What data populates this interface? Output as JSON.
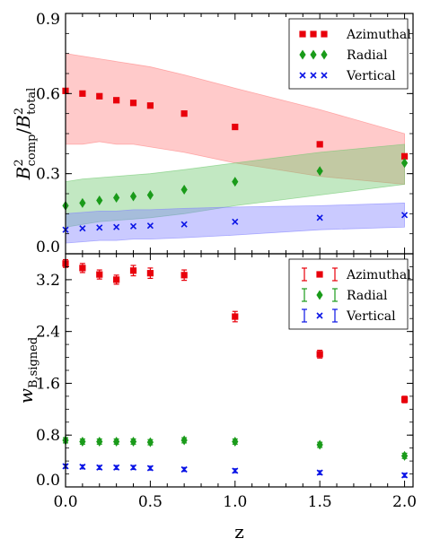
{
  "chart_data": [
    {
      "type": "scatter",
      "panel": "top",
      "ylabel": "B²comp/B²total",
      "ylabel_parts": {
        "num_base": "B",
        "num_sub": "comp",
        "den_base": "B",
        "den_sub": "total",
        "sup": "2",
        "sep": "/"
      },
      "xlim": [
        0.0,
        2.05
      ],
      "ylim": [
        0.0,
        0.9
      ],
      "yticks": [
        0.0,
        0.3,
        0.6,
        0.9
      ],
      "ytick_labels": [
        "0.0",
        "0.3",
        "0.6",
        "0.9"
      ],
      "grid": false,
      "legend_position": "top-right",
      "x": [
        0.0,
        0.1,
        0.2,
        0.3,
        0.4,
        0.5,
        0.7,
        1.0,
        1.5,
        2.0
      ],
      "series": [
        {
          "name": "Azimuthal",
          "marker": "square",
          "color": "#e8000b",
          "values": [
            0.61,
            0.6,
            0.59,
            0.575,
            0.565,
            0.555,
            0.525,
            0.475,
            0.41,
            0.365
          ],
          "band_upper": [
            0.75,
            0.74,
            0.73,
            0.72,
            0.71,
            0.7,
            0.67,
            0.62,
            0.54,
            0.45
          ],
          "band_lower": [
            0.41,
            0.41,
            0.42,
            0.41,
            0.41,
            0.4,
            0.38,
            0.34,
            0.29,
            0.26
          ],
          "band_color": "#ff8080"
        },
        {
          "name": "Radial",
          "marker": "diamond",
          "color": "#1a9b1a",
          "values": [
            0.18,
            0.19,
            0.2,
            0.21,
            0.215,
            0.22,
            0.24,
            0.27,
            0.31,
            0.34
          ],
          "band_upper": [
            0.27,
            0.28,
            0.285,
            0.29,
            0.295,
            0.3,
            0.315,
            0.34,
            0.38,
            0.41
          ],
          "band_lower": [
            0.1,
            0.11,
            0.12,
            0.125,
            0.13,
            0.135,
            0.15,
            0.18,
            0.22,
            0.26
          ],
          "band_color": "#6ec86e"
        },
        {
          "name": "Vertical",
          "marker": "x",
          "color": "#0a14e6",
          "values": [
            0.09,
            0.095,
            0.098,
            0.1,
            0.103,
            0.105,
            0.11,
            0.12,
            0.135,
            0.145
          ],
          "band_upper": [
            0.15,
            0.155,
            0.16,
            0.16,
            0.165,
            0.165,
            0.17,
            0.175,
            0.18,
            0.19
          ],
          "band_lower": [
            0.04,
            0.045,
            0.05,
            0.05,
            0.055,
            0.055,
            0.06,
            0.07,
            0.09,
            0.1
          ],
          "band_color": "#8080ff"
        }
      ]
    },
    {
      "type": "scatter",
      "panel": "bottom",
      "xlabel": "z",
      "ylabel": "w_B,signed",
      "ylabel_parts": {
        "base": "w",
        "sub": "B,signed"
      },
      "xlim": [
        0.0,
        2.05
      ],
      "ylim": [
        0.0,
        3.6
      ],
      "xticks": [
        0.0,
        0.5,
        1.0,
        1.5,
        2.0
      ],
      "xtick_labels": [
        "0.0",
        "0.5",
        "1.0",
        "1.5",
        "2.0"
      ],
      "yticks": [
        0.0,
        0.8,
        1.6,
        2.4,
        3.2
      ],
      "ytick_labels": [
        "0.0",
        "0.8",
        "1.6",
        "2.4",
        "3.2"
      ],
      "grid": false,
      "legend_position": "top-right",
      "x": [
        0.0,
        0.1,
        0.2,
        0.3,
        0.4,
        0.5,
        0.7,
        1.0,
        1.5,
        2.0
      ],
      "series": [
        {
          "name": "Azimuthal",
          "marker": "square",
          "color": "#e8000b",
          "values": [
            3.45,
            3.38,
            3.28,
            3.2,
            3.34,
            3.3,
            3.27,
            2.63,
            2.05,
            1.35
          ],
          "errors": [
            0.06,
            0.07,
            0.07,
            0.07,
            0.08,
            0.08,
            0.08,
            0.08,
            0.06,
            0.05
          ]
        },
        {
          "name": "Radial",
          "marker": "diamond",
          "color": "#1a9b1a",
          "values": [
            0.72,
            0.7,
            0.7,
            0.7,
            0.7,
            0.69,
            0.72,
            0.7,
            0.65,
            0.48
          ],
          "errors": [
            0.04,
            0.04,
            0.04,
            0.04,
            0.04,
            0.04,
            0.04,
            0.04,
            0.04,
            0.04
          ]
        },
        {
          "name": "Vertical",
          "marker": "x",
          "color": "#0a14e6",
          "values": [
            0.32,
            0.31,
            0.3,
            0.3,
            0.3,
            0.29,
            0.27,
            0.25,
            0.22,
            0.18
          ],
          "errors": [
            0.03,
            0.03,
            0.03,
            0.03,
            0.03,
            0.03,
            0.03,
            0.03,
            0.03,
            0.03
          ]
        }
      ]
    }
  ]
}
